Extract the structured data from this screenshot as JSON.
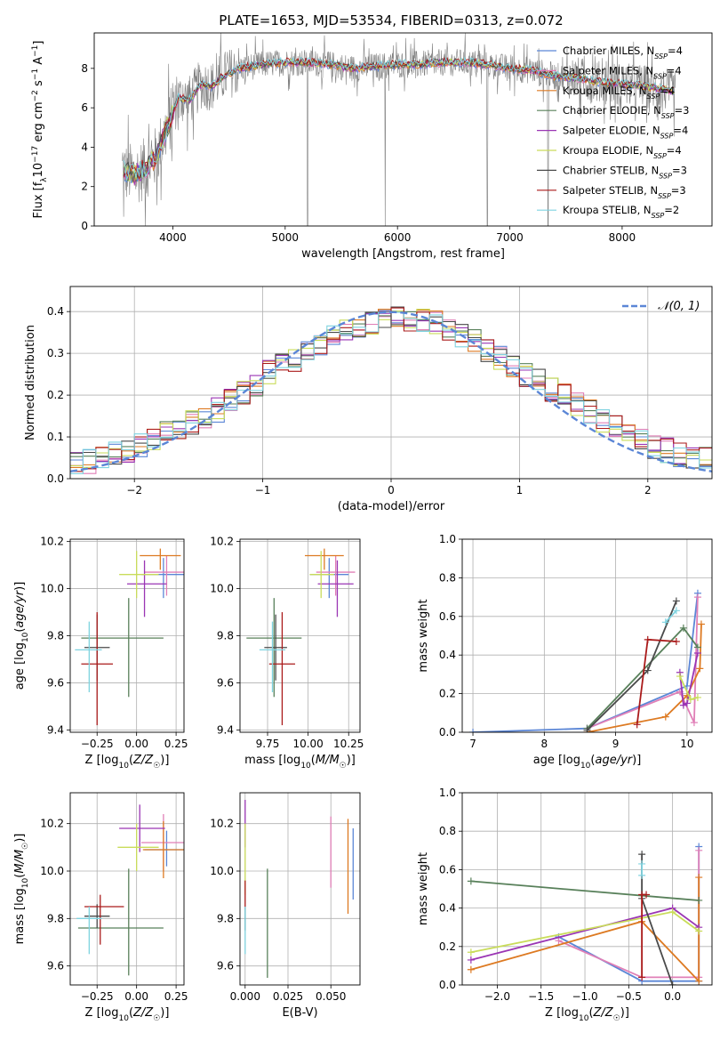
{
  "figure": {
    "title": "PLATE=1653, MJD=53534, FIBERID=0313, z=0.072"
  },
  "colors": {
    "Chabrier MILES": "#5b86d6",
    "Salpeter MILES": "#e07fb7",
    "Kroupa MILES": "#dd7a22",
    "Chabrier ELODIE": "#58805a",
    "Salpeter ELODIE": "#9a35b4",
    "Kroupa ELODIE": "#c9dc5a",
    "Chabrier STELIB": "#4a4a4a",
    "Salpeter STELIB": "#aa1a1a",
    "Kroupa STELIB": "#7fd3e0",
    "data": "#808080",
    "normal": "#5b86d6"
  },
  "chart_data": [
    {
      "id": "spectrum",
      "type": "line",
      "xlabel": "wavelength [Angstrom, rest frame]",
      "ylabel": "Flux [f_λ 10^-17 erg cm^-2 s^-1 A^-1]",
      "xlim": [
        3300,
        8800
      ],
      "ylim": [
        0,
        9.8
      ],
      "xticks": [
        "4000",
        "5000",
        "6000",
        "7000",
        "8000"
      ],
      "yticks": [
        "0",
        "2",
        "4",
        "6",
        "8"
      ],
      "legend_position": "top-right",
      "legend": [
        {
          "name": "Chabrier MILES",
          "sub": "SSP",
          "n": "4"
        },
        {
          "name": "Salpeter MILES",
          "sub": "SSP",
          "n": "4"
        },
        {
          "name": "Kroupa MILES",
          "sub": "SSP",
          "n": "4"
        },
        {
          "name": "Chabrier ELODIE",
          "sub": "SSP",
          "n": "3"
        },
        {
          "name": "Salpeter ELODIE",
          "sub": "SSP",
          "n": "4"
        },
        {
          "name": "Kroupa ELODIE",
          "sub": "SSP",
          "n": "4"
        },
        {
          "name": "Chabrier STELIB",
          "sub": "SSP",
          "n": "3"
        },
        {
          "name": "Salpeter STELIB",
          "sub": "SSP",
          "n": "3"
        },
        {
          "name": "Kroupa STELIB",
          "sub": "SSP",
          "n": "2"
        }
      ],
      "model_continuum": {
        "x": [
          3550,
          3650,
          3750,
          3850,
          3950,
          4050,
          4150,
          4250,
          4350,
          4450,
          4600,
          4800,
          5000,
          5200,
          5400,
          5600,
          5800,
          6000,
          6200,
          6400,
          6600,
          6800,
          7000,
          7200,
          7400,
          7600,
          7800,
          8000,
          8200,
          8400,
          8500
        ],
        "y": [
          2.8,
          2.6,
          2.9,
          3.5,
          5.0,
          6.5,
          6.4,
          7.2,
          7.1,
          7.6,
          8.0,
          8.2,
          8.3,
          8.3,
          8.2,
          8.0,
          8.1,
          8.2,
          8.2,
          8.3,
          8.3,
          8.2,
          8.0,
          7.9,
          7.6,
          7.5,
          7.3,
          7.2,
          7.1,
          6.9,
          6.8
        ]
      }
    },
    {
      "id": "residual-histogram",
      "type": "histogram",
      "xlabel": "(data-model)/error",
      "ylabel": "Normed distribution",
      "xlim": [
        -2.5,
        2.5
      ],
      "ylim": [
        0,
        0.46
      ],
      "xticks": [
        "−2",
        "−1",
        "0",
        "1",
        "2"
      ],
      "yticks": [
        "0.0",
        "0.1",
        "0.2",
        "0.3",
        "0.4"
      ],
      "legend": "𝒩(0, 1)",
      "legend_position": "top-right",
      "bin_edges_start": -2.5,
      "bin_width": 0.1,
      "reference_profile": [
        0.04,
        0.042,
        0.048,
        0.058,
        0.068,
        0.08,
        0.092,
        0.108,
        0.122,
        0.135,
        0.148,
        0.165,
        0.185,
        0.205,
        0.228,
        0.255,
        0.275,
        0.285,
        0.298,
        0.32,
        0.338,
        0.35,
        0.368,
        0.372,
        0.38,
        0.385,
        0.382,
        0.378,
        0.372,
        0.36,
        0.345,
        0.33,
        0.31,
        0.29,
        0.268,
        0.25,
        0.235,
        0.215,
        0.198,
        0.18,
        0.16,
        0.14,
        0.122,
        0.105,
        0.092,
        0.078,
        0.068,
        0.058,
        0.052,
        0.048
      ]
    },
    {
      "id": "age-vs-Z",
      "type": "scatter",
      "xlabel": "Z [log10(Z/Z☉)]",
      "ylabel": "age [log10(age/yr)]",
      "xlim": [
        -0.42,
        0.3
      ],
      "ylim": [
        9.39,
        10.21
      ],
      "xticks": [
        "−0.25",
        "0.00",
        "0.25"
      ],
      "yticks": [
        "9.4",
        "9.6",
        "9.8",
        "10.0",
        "10.2"
      ],
      "points": [
        {
          "model": "Chabrier MILES",
          "x": 0.17,
          "y": 10.06,
          "xerr": [
            0.14,
            0.14
          ],
          "yerr": [
            0.1,
            0.07
          ]
        },
        {
          "model": "Salpeter MILES",
          "x": 0.19,
          "y": 10.07,
          "xerr": [
            0.14,
            0.14
          ],
          "yerr": [
            0.1,
            0.07
          ]
        },
        {
          "model": "Kroupa MILES",
          "x": 0.15,
          "y": 10.14,
          "xerr": [
            0.13,
            0.13
          ],
          "yerr": [
            0.06,
            0.03
          ]
        },
        {
          "model": "Chabrier ELODIE",
          "x": -0.05,
          "y": 9.79,
          "xerr": [
            0.3,
            0.22
          ],
          "yerr": [
            0.25,
            0.17
          ]
        },
        {
          "model": "Salpeter ELODIE",
          "x": 0.05,
          "y": 10.02,
          "xerr": [
            0.11,
            0.14
          ],
          "yerr": [
            0.14,
            0.1
          ]
        },
        {
          "model": "Kroupa ELODIE",
          "x": 0.0,
          "y": 10.06,
          "xerr": [
            0.11,
            0.14
          ],
          "yerr": [
            0.1,
            0.1
          ]
        },
        {
          "model": "Chabrier STELIB",
          "x": -0.25,
          "y": 9.75,
          "xerr": [
            0.08,
            0.08
          ],
          "yerr": [
            0.14,
            0.14
          ]
        },
        {
          "model": "Salpeter STELIB",
          "x": -0.25,
          "y": 9.68,
          "xerr": [
            0.1,
            0.1
          ],
          "yerr": [
            0.26,
            0.22
          ]
        },
        {
          "model": "Kroupa STELIB",
          "x": -0.3,
          "y": 9.74,
          "xerr": [
            0.09,
            0.08
          ],
          "yerr": [
            0.18,
            0.12
          ]
        }
      ]
    },
    {
      "id": "age-vs-mass",
      "type": "scatter",
      "xlabel": "mass [log10(M/M☉)]",
      "ylabel": "",
      "xlim": [
        9.58,
        10.32
      ],
      "ylim": [
        9.39,
        10.21
      ],
      "xticks": [
        "9.75",
        "10.00",
        "10.25"
      ],
      "yticks": [
        "9.4",
        "9.6",
        "9.8",
        "10.0",
        "10.2"
      ],
      "points": [
        {
          "model": "Chabrier MILES",
          "x": 10.13,
          "y": 10.06,
          "xerr": [
            0.12,
            0.12
          ],
          "yerr": [
            0.1,
            0.07
          ]
        },
        {
          "model": "Salpeter MILES",
          "x": 10.17,
          "y": 10.07,
          "xerr": [
            0.12,
            0.12
          ],
          "yerr": [
            0.1,
            0.07
          ]
        },
        {
          "model": "Kroupa MILES",
          "x": 10.1,
          "y": 10.14,
          "xerr": [
            0.12,
            0.12
          ],
          "yerr": [
            0.06,
            0.03
          ]
        },
        {
          "model": "Chabrier ELODIE",
          "x": 9.79,
          "y": 9.79,
          "xerr": [
            0.17,
            0.17
          ],
          "yerr": [
            0.25,
            0.17
          ]
        },
        {
          "model": "Salpeter ELODIE",
          "x": 10.18,
          "y": 10.02,
          "xerr": [
            0.12,
            0.1
          ],
          "yerr": [
            0.14,
            0.1
          ]
        },
        {
          "model": "Kroupa ELODIE",
          "x": 10.08,
          "y": 10.06,
          "xerr": [
            0.07,
            0.08
          ],
          "yerr": [
            0.1,
            0.1
          ]
        },
        {
          "model": "Chabrier STELIB",
          "x": 9.8,
          "y": 9.75,
          "xerr": [
            0.07,
            0.07
          ],
          "yerr": [
            0.14,
            0.14
          ]
        },
        {
          "model": "Salpeter STELIB",
          "x": 9.84,
          "y": 9.68,
          "xerr": [
            0.08,
            0.08
          ],
          "yerr": [
            0.26,
            0.22
          ]
        },
        {
          "model": "Kroupa STELIB",
          "x": 9.78,
          "y": 9.74,
          "xerr": [
            0.08,
            0.08
          ],
          "yerr": [
            0.18,
            0.12
          ]
        }
      ]
    },
    {
      "id": "mass-weight-vs-age",
      "type": "line",
      "xlabel": "age [log10(age/yr)]",
      "ylabel": "mass weight",
      "xlim": [
        6.85,
        10.35
      ],
      "ylim": [
        0,
        1.0
      ],
      "xticks": [
        "7",
        "8",
        "9",
        "10"
      ],
      "yticks": [
        "0.0",
        "0.2",
        "0.4",
        "0.6",
        "0.8",
        "1.0"
      ],
      "series": [
        {
          "model": "Chabrier MILES",
          "x": [
            7.0,
            8.6,
            10.0,
            10.15
          ],
          "y": [
            0.0,
            0.02,
            0.24,
            0.72
          ]
        },
        {
          "model": "Salpeter MILES",
          "x": [
            8.6,
            9.9,
            10.1,
            10.15
          ],
          "y": [
            0.02,
            0.21,
            0.05,
            0.7
          ]
        },
        {
          "model": "Kroupa MILES",
          "x": [
            8.6,
            9.7,
            10.0,
            10.18,
            10.2
          ],
          "y": [
            0.0,
            0.08,
            0.19,
            0.33,
            0.56
          ]
        },
        {
          "model": "Chabrier ELODIE",
          "x": [
            8.6,
            9.95,
            10.15
          ],
          "y": [
            0.02,
            0.54,
            0.44
          ]
        },
        {
          "model": "Salpeter ELODIE",
          "x": [
            9.9,
            9.95,
            10.0,
            10.15
          ],
          "y": [
            0.31,
            0.14,
            0.15,
            0.41
          ]
        },
        {
          "model": "Kroupa ELODIE",
          "x": [
            9.9,
            10.05,
            10.15
          ],
          "y": [
            0.29,
            0.17,
            0.18
          ]
        },
        {
          "model": "Chabrier STELIB",
          "x": [
            8.6,
            9.45,
            9.85
          ],
          "y": [
            0.01,
            0.32,
            0.68
          ]
        },
        {
          "model": "Salpeter STELIB",
          "x": [
            9.3,
            9.45,
            9.85
          ],
          "y": [
            0.04,
            0.48,
            0.47
          ]
        },
        {
          "model": "Kroupa STELIB",
          "x": [
            9.7,
            9.85
          ],
          "y": [
            0.57,
            0.63
          ]
        }
      ]
    },
    {
      "id": "mass-vs-Z",
      "type": "scatter",
      "xlabel": "Z [log10(Z/Z☉)]",
      "ylabel": "mass [log10(M/M☉)]",
      "xlim": [
        -0.42,
        0.3
      ],
      "ylim": [
        9.52,
        10.33
      ],
      "xticks": [
        "−0.25",
        "0.00",
        "0.25"
      ],
      "yticks": [
        "9.6",
        "9.8",
        "10.0",
        "10.2"
      ],
      "points": [
        {
          "model": "Chabrier MILES",
          "x": 0.19,
          "y": 10.09,
          "xerr": [
            0.14,
            0.12
          ],
          "yerr": [
            0.07,
            0.08
          ]
        },
        {
          "model": "Salpeter MILES",
          "x": 0.17,
          "y": 10.12,
          "xerr": [
            0.14,
            0.14
          ],
          "yerr": [
            0.12,
            0.12
          ]
        },
        {
          "model": "Kroupa MILES",
          "x": 0.17,
          "y": 10.09,
          "xerr": [
            0.13,
            0.13
          ],
          "yerr": [
            0.12,
            0.12
          ]
        },
        {
          "model": "Chabrier ELODIE",
          "x": -0.05,
          "y": 9.76,
          "xerr": [
            0.32,
            0.22
          ],
          "yerr": [
            0.2,
            0.25
          ]
        },
        {
          "model": "Salpeter ELODIE",
          "x": 0.02,
          "y": 10.18,
          "xerr": [
            0.13,
            0.16
          ],
          "yerr": [
            0.1,
            0.1
          ]
        },
        {
          "model": "Kroupa ELODIE",
          "x": 0.0,
          "y": 10.1,
          "xerr": [
            0.12,
            0.14
          ],
          "yerr": [
            0.1,
            0.1
          ]
        },
        {
          "model": "Chabrier STELIB",
          "x": -0.25,
          "y": 9.81,
          "xerr": [
            0.08,
            0.08
          ],
          "yerr": [
            0.05,
            0.05
          ]
        },
        {
          "model": "Salpeter STELIB",
          "x": -0.23,
          "y": 9.85,
          "xerr": [
            0.1,
            0.15
          ],
          "yerr": [
            0.16,
            0.05
          ]
        },
        {
          "model": "Kroupa STELIB",
          "x": -0.3,
          "y": 9.8,
          "xerr": [
            0.08,
            0.08
          ],
          "yerr": [
            0.15,
            0.05
          ]
        }
      ]
    },
    {
      "id": "mass-vs-EBV",
      "type": "scatter",
      "xlabel": "E(B-V)",
      "ylabel": "",
      "xlim": [
        -0.003,
        0.067
      ],
      "ylim": [
        9.52,
        10.33
      ],
      "xticks": [
        "0.000",
        "0.025",
        "0.050"
      ],
      "yticks": [
        "9.6",
        "9.8",
        "10.0",
        "10.2"
      ],
      "points": [
        {
          "model": "Chabrier MILES",
          "x": 0.063,
          "y": 10.03,
          "xerr": [
            0,
            0
          ],
          "yerr": [
            0.15,
            0.15
          ]
        },
        {
          "model": "Salpeter MILES",
          "x": 0.05,
          "y": 10.08,
          "xerr": [
            0,
            0
          ],
          "yerr": [
            0.15,
            0.15
          ]
        },
        {
          "model": "Kroupa MILES",
          "x": 0.06,
          "y": 10.02,
          "xerr": [
            0,
            0
          ],
          "yerr": [
            0.2,
            0.2
          ]
        },
        {
          "model": "Chabrier ELODIE",
          "x": 0.013,
          "y": 9.78,
          "xerr": [
            0,
            0
          ],
          "yerr": [
            0.23,
            0.23
          ]
        },
        {
          "model": "Salpeter ELODIE",
          "x": 0.0,
          "y": 10.2,
          "xerr": [
            0,
            0
          ],
          "yerr": [
            0.1,
            0.1
          ]
        },
        {
          "model": "Kroupa ELODIE",
          "x": 0.0,
          "y": 10.05,
          "xerr": [
            0,
            0
          ],
          "yerr": [
            0.15,
            0.15
          ]
        },
        {
          "model": "Chabrier STELIB",
          "x": 0.0,
          "y": 9.8,
          "xerr": [
            0,
            0
          ],
          "yerr": [
            0.05,
            0.05
          ]
        },
        {
          "model": "Salpeter STELIB",
          "x": 0.0,
          "y": 9.9,
          "xerr": [
            0,
            0
          ],
          "yerr": [
            0.06,
            0.06
          ]
        },
        {
          "model": "Kroupa STELIB",
          "x": 0.0,
          "y": 9.75,
          "xerr": [
            0,
            0
          ],
          "yerr": [
            0.1,
            0.1
          ]
        }
      ]
    },
    {
      "id": "mass-weight-vs-Z",
      "type": "line",
      "xlabel": "Z [log10(Z/Z☉)]",
      "ylabel": "mass weight",
      "xlim": [
        -2.4,
        0.45
      ],
      "ylim": [
        0,
        1.0
      ],
      "xticks": [
        "−2.0",
        "−1.5",
        "−1.0",
        "−0.5",
        "0.0"
      ],
      "yticks": [
        "0.0",
        "0.2",
        "0.4",
        "0.6",
        "0.8",
        "1.0"
      ],
      "series": [
        {
          "model": "Chabrier MILES",
          "x": [
            -1.3,
            -0.35,
            0.3,
            0.3
          ],
          "y": [
            0.25,
            0.02,
            0.02,
            0.72
          ]
        },
        {
          "model": "Salpeter MILES",
          "x": [
            -1.3,
            -0.35,
            0.3,
            0.3
          ],
          "y": [
            0.23,
            0.04,
            0.04,
            0.7
          ]
        },
        {
          "model": "Kroupa MILES",
          "x": [
            -2.3,
            -0.35,
            0.3,
            0.3
          ],
          "y": [
            0.08,
            0.33,
            0.02,
            0.56
          ]
        },
        {
          "model": "Chabrier ELODIE",
          "x": [
            -2.3,
            0.3
          ],
          "y": [
            0.54,
            0.44
          ]
        },
        {
          "model": "Salpeter ELODIE",
          "x": [
            -2.3,
            0.0,
            0.3
          ],
          "y": [
            0.13,
            0.4,
            0.3
          ]
        },
        {
          "model": "Kroupa ELODIE",
          "x": [
            -2.3,
            0.0,
            0.3
          ],
          "y": [
            0.17,
            0.38,
            0.28
          ]
        },
        {
          "model": "Chabrier STELIB",
          "x": [
            -0.35,
            -0.35,
            0.0
          ],
          "y": [
            0.68,
            0.45,
            0.0
          ]
        },
        {
          "model": "Salpeter STELIB",
          "x": [
            -0.35,
            -0.35,
            -0.3
          ],
          "y": [
            0.04,
            0.47,
            0.47
          ]
        },
        {
          "model": "Kroupa STELIB",
          "x": [
            -0.35,
            -0.35
          ],
          "y": [
            0.57,
            0.63
          ]
        }
      ]
    }
  ]
}
